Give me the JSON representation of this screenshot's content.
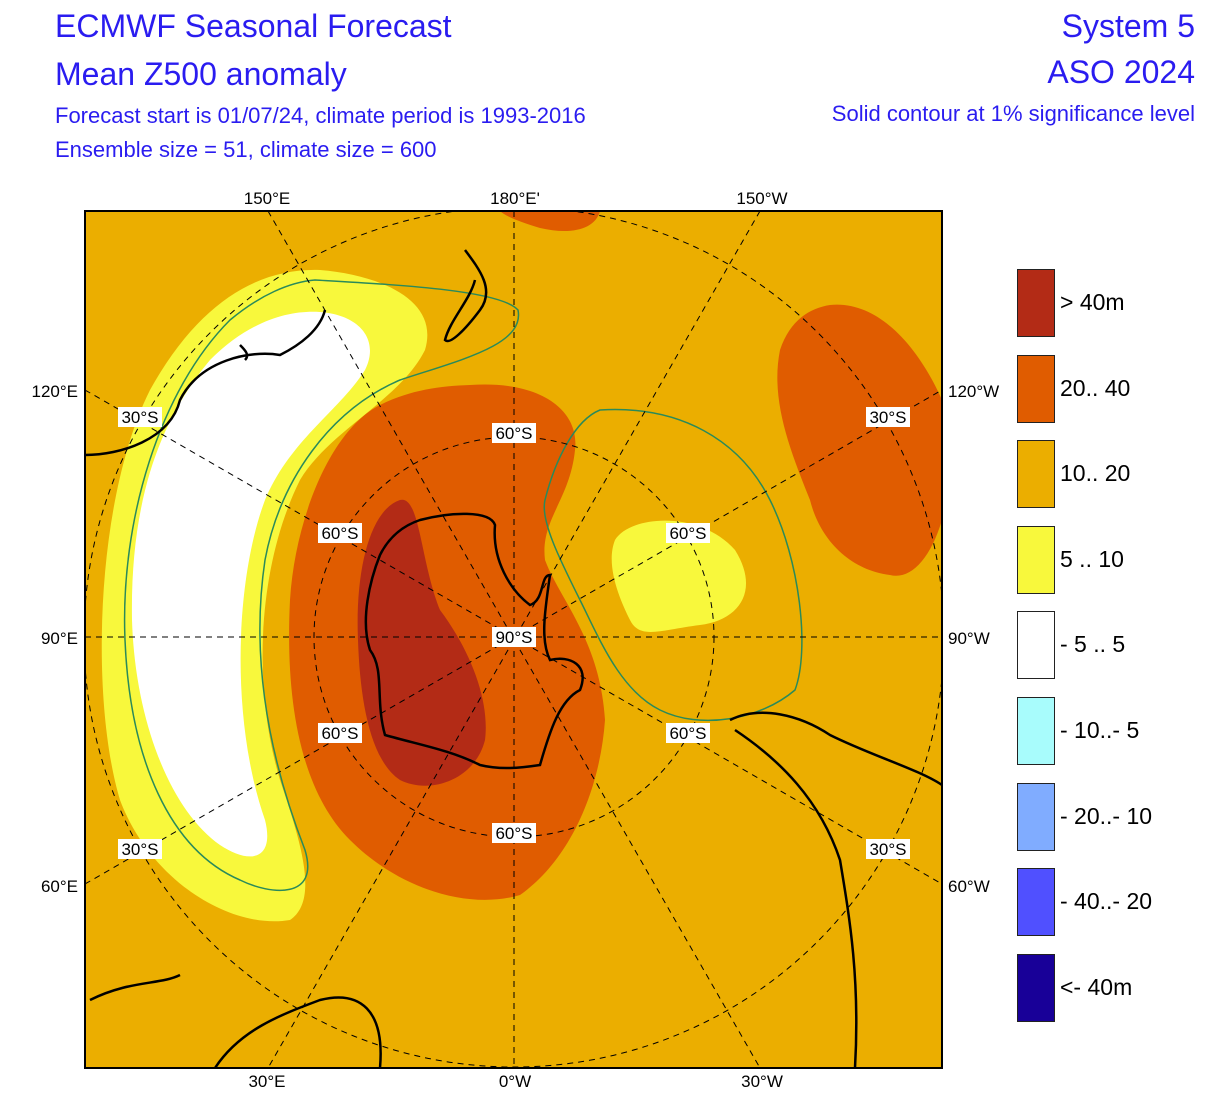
{
  "header": {
    "title": "ECMWF Seasonal Forecast",
    "subtitle": "Mean Z500 anomaly",
    "line3": "Forecast start is 01/07/24, climate period is 1993-2016",
    "line4": "Ensemble size = 51, climate size = 600",
    "system": "System 5",
    "season": "ASO 2024",
    "significance": "Solid contour at 1% significance level"
  },
  "map": {
    "projection": "south polar stereographic",
    "lon_labels": {
      "top": [
        "150°E",
        "180°E'",
        "150°W"
      ],
      "bottom": [
        "30°E",
        "0°W",
        "30°W"
      ],
      "left": [
        "120°E",
        "90°E",
        "60°E"
      ],
      "right": [
        "120°W",
        "90°W",
        "60°W"
      ]
    },
    "lat_labels": {
      "pole": "90°S",
      "inner": "60°S",
      "outer": "30°S"
    }
  },
  "legend": [
    {
      "label": "> 40m",
      "color": "#b32b16"
    },
    {
      "label": "20.. 40",
      "color": "#e05c00"
    },
    {
      "label": "10.. 20",
      "color": "#ebae00"
    },
    {
      "label": "5 .. 10",
      "color": "#f8f83c"
    },
    {
      "label": "- 5 .. 5",
      "color": "#ffffff"
    },
    {
      "label": "- 10..- 5",
      "color": "#a8fcfc"
    },
    {
      "label": "- 20..- 10",
      "color": "#80acff"
    },
    {
      "label": "- 40..- 20",
      "color": "#5050ff"
    },
    {
      "label": "<- 40m",
      "color": "#180098"
    }
  ]
}
